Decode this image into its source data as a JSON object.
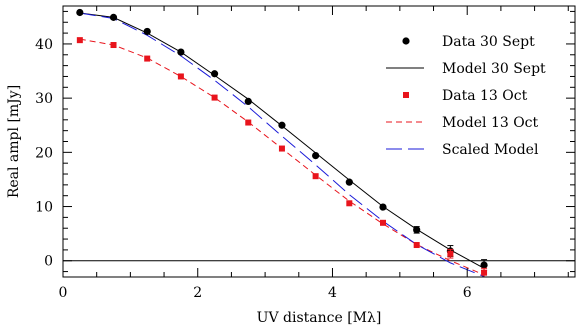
{
  "chart_data": {
    "type": "scatter",
    "xlabel": "UV distance [Mλ]",
    "ylabel": "Real ampl [mJy]",
    "xlim": [
      0,
      7.6
    ],
    "ylim": [
      -3,
      47
    ],
    "x_ticks": [
      0,
      2,
      4,
      6
    ],
    "y_ticks": [
      0,
      10,
      20,
      30,
      40
    ],
    "legend_position": "top-right",
    "zero_line": true,
    "series": [
      {
        "name": "Data 30 Sept",
        "kind": "points",
        "marker": "circle",
        "color": "#000000",
        "x": [
          0.25,
          0.75,
          1.25,
          1.75,
          2.25,
          2.75,
          3.25,
          3.75,
          4.25,
          4.75,
          5.25,
          5.75,
          6.25
        ],
        "y": [
          45.8,
          44.9,
          42.3,
          38.5,
          34.5,
          29.4,
          25.0,
          19.4,
          14.5,
          9.9,
          5.7,
          1.8,
          -0.8
        ],
        "err": [
          0.3,
          0.3,
          0.3,
          0.3,
          0.3,
          0.3,
          0.4,
          0.4,
          0.4,
          0.5,
          0.6,
          1.0,
          1.0
        ]
      },
      {
        "name": "Model 30 Sept",
        "kind": "line",
        "dash": "solid",
        "color": "#000000",
        "x": [
          0.25,
          0.75,
          1.25,
          1.75,
          2.25,
          2.75,
          3.25,
          3.75,
          4.25,
          4.75,
          5.25,
          5.75,
          6.25
        ],
        "y": [
          45.7,
          44.9,
          42.0,
          38.5,
          34.2,
          29.8,
          24.9,
          19.9,
          14.9,
          10.0,
          5.8,
          2.0,
          -1.4
        ]
      },
      {
        "name": "Data 13 Oct",
        "kind": "points",
        "marker": "square",
        "color": "#e8141c",
        "x": [
          0.25,
          0.75,
          1.25,
          1.75,
          2.25,
          2.75,
          3.25,
          3.75,
          4.25,
          4.75,
          5.25,
          5.75,
          6.25
        ],
        "y": [
          40.7,
          39.8,
          37.3,
          34.0,
          30.1,
          25.5,
          20.7,
          15.6,
          10.6,
          7.0,
          2.9,
          1.3,
          -2.2
        ],
        "err": [
          0.2,
          0.2,
          0.2,
          0.2,
          0.2,
          0.2,
          0.3,
          0.3,
          0.3,
          0.4,
          0.5,
          0.8,
          0.8
        ]
      },
      {
        "name": "Model 13 Oct",
        "kind": "line",
        "dash": "short-dash",
        "color": "#e8141c",
        "x": [
          0.25,
          0.75,
          1.25,
          1.75,
          2.25,
          2.75,
          3.25,
          3.75,
          4.25,
          4.75,
          5.25,
          5.75,
          6.25
        ],
        "y": [
          40.9,
          39.8,
          37.4,
          34.0,
          30.1,
          25.6,
          20.7,
          15.8,
          11.0,
          6.8,
          3.0,
          0.0,
          -2.6
        ]
      },
      {
        "name": "Scaled Model",
        "kind": "line",
        "dash": "long-dash",
        "color": "#1a1ad8",
        "x": [
          0.25,
          0.75,
          1.25,
          1.75,
          2.25,
          2.75,
          3.25,
          3.75,
          4.25,
          4.75,
          5.25,
          5.75,
          6.25
        ],
        "y": [
          45.7,
          44.7,
          41.6,
          37.8,
          33.3,
          28.4,
          23.0,
          17.7,
          12.2,
          7.3,
          3.0,
          -0.4,
          -2.9
        ]
      }
    ]
  }
}
